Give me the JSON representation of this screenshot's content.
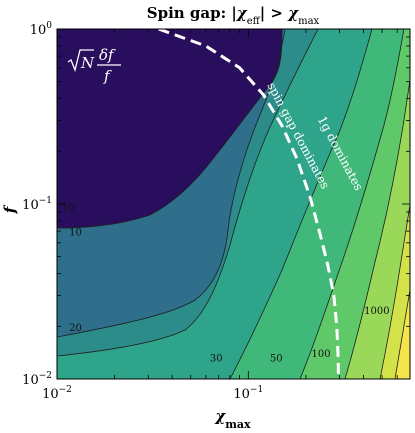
{
  "chart_data": {
    "type": "contour",
    "title": "Spin gap: |χeff| > χmax",
    "title_parts": {
      "prefix": "Spin gap: |",
      "chi": "χ",
      "sub_eff": "eff",
      "middle": "| > ",
      "chi2": "χ",
      "sub_max": "max"
    },
    "xlabel": {
      "symbol": "χ",
      "sub": "max"
    },
    "ylabel": "f",
    "x_scale": "log",
    "y_scale": "log",
    "xlim": [
      0.01,
      0.7
    ],
    "ylim": [
      0.01,
      1.0
    ],
    "x_ticks": [
      {
        "value": 0.01,
        "base": "10",
        "exp": "−2"
      },
      {
        "value": 0.1,
        "base": "10",
        "exp": "−1"
      }
    ],
    "y_ticks": [
      {
        "value": 0.01,
        "base": "10",
        "exp": "−2"
      },
      {
        "value": 0.1,
        "base": "10",
        "exp": "−1"
      },
      {
        "value": 1.0,
        "base": "10",
        "exp": "0"
      }
    ],
    "colormap": "viridis",
    "colors": {
      "deep": "#2a0e5e",
      "band1": "#2f6f8c",
      "band2": "#2c8c8a",
      "band3": "#2ea58a",
      "band4": "#40b87a",
      "band5": "#5fc96a",
      "band6": "#9ad85a",
      "band7": "#d4e24a",
      "band8": "#f3e54a",
      "contour_line": "#1e1e1e",
      "divider": "#ffffff"
    },
    "contour_levels": [
      10,
      20,
      30,
      50,
      100,
      1000
    ],
    "contour_labels": [
      {
        "text": "10",
        "x": 0.0115,
        "y": 0.092
      },
      {
        "text": "10",
        "x": 0.0125,
        "y": 0.066
      },
      {
        "text": "20",
        "x": 0.0125,
        "y": 0.0188
      },
      {
        "text": "30",
        "x": 0.068,
        "y": 0.0126
      },
      {
        "text": "50",
        "x": 0.14,
        "y": 0.0126
      },
      {
        "text": "100",
        "x": 0.24,
        "y": 0.0134
      },
      {
        "text": "1000",
        "x": 0.47,
        "y": 0.0235
      }
    ],
    "inset_label": {
      "sqrt_n": "N",
      "delta_f": "δf",
      "f": "f"
    },
    "divider_curve": {
      "style": "dashed",
      "points": [
        [
          0.034,
          1.0
        ],
        [
          0.06,
          0.8
        ],
        [
          0.09,
          0.6
        ],
        [
          0.12,
          0.42
        ],
        [
          0.15,
          0.28
        ],
        [
          0.18,
          0.18
        ],
        [
          0.21,
          0.11
        ],
        [
          0.235,
          0.07
        ],
        [
          0.26,
          0.045
        ],
        [
          0.28,
          0.03
        ],
        [
          0.29,
          0.02
        ],
        [
          0.295,
          0.013
        ],
        [
          0.296,
          0.01
        ]
      ]
    },
    "region_labels": [
      {
        "text": "1g dominates",
        "x": 0.29,
        "y": 0.19,
        "rotation": 62
      },
      {
        "text": "spin gap dominates",
        "x": 0.175,
        "y": 0.24,
        "rotation": 62
      }
    ],
    "grid": false
  }
}
